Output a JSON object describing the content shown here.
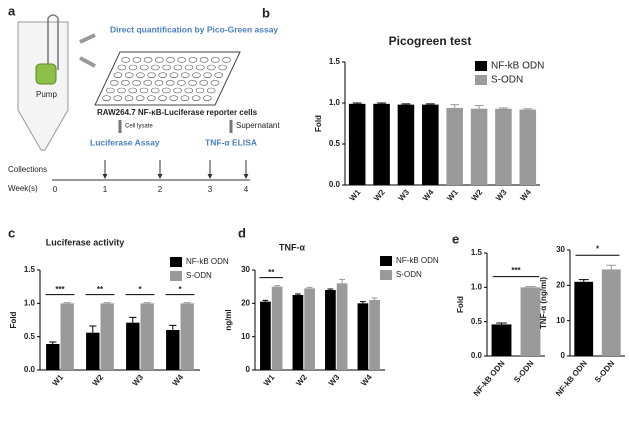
{
  "panel_labels": [
    "a",
    "b",
    "c",
    "d",
    "e"
  ],
  "diagram": {
    "assay": "Direct quantification by Pico-Green assay",
    "pump": "Pump",
    "cells": "RAW264.7 NF-κB-Luciferase reporter cells",
    "left_step": "Cell lysate",
    "right_step": "Supernatant",
    "left_assay": "Luciferase Assay",
    "right_assay": "TNF-α ELISA",
    "collections": "Collections",
    "weeks_label": "Week(s)",
    "weeks": [
      0,
      1,
      2,
      3,
      4
    ]
  },
  "chart_data": [
    {
      "type": "bar",
      "title": "Picogreen test",
      "ylabel": "Fold",
      "categories": [
        "W1",
        "W2",
        "W3",
        "W4",
        "W1",
        "W2",
        "W3",
        "W4"
      ],
      "series": [
        {
          "name": "NF-kB ODN",
          "color": "#000000",
          "values": [
            0.99,
            0.99,
            0.98,
            0.98,
            null,
            null,
            null,
            null
          ],
          "errors": [
            0.01,
            0.01,
            0.01,
            0.01,
            null,
            null,
            null,
            null
          ]
        },
        {
          "name": "S-ODN",
          "color": "#9a9a9a",
          "values": [
            null,
            null,
            null,
            null,
            0.94,
            0.93,
            0.93,
            0.92
          ],
          "errors": [
            null,
            null,
            null,
            null,
            0.04,
            0.04,
            0.01,
            0.01
          ]
        }
      ],
      "ylim": [
        0,
        1.5
      ],
      "yticks": [
        {
          "value": 0,
          "label": "0.0"
        },
        {
          "value": 0.5,
          "label": "0.5"
        },
        {
          "value": 1,
          "label": "1.0"
        },
        {
          "value": 1.5,
          "label": "1.5"
        }
      ]
    },
    {
      "type": "bar",
      "title": "Luciferase activity",
      "ylabel": "Fold",
      "categories": [
        "W1",
        "W2",
        "W3",
        "W4"
      ],
      "series": [
        {
          "name": "NF-kB ODN",
          "color": "#000000",
          "values": [
            0.39,
            0.56,
            0.71,
            0.6
          ],
          "errors": [
            0.03,
            0.1,
            0.08,
            0.07
          ]
        },
        {
          "name": "S-ODN",
          "color": "#9a9a9a",
          "values": [
            1.0,
            1.0,
            1.0,
            1.0
          ],
          "errors": [
            0.01,
            0.01,
            0.01,
            0.01
          ]
        }
      ],
      "significance": [
        "***",
        "**",
        "*",
        "*"
      ],
      "ylim": [
        0,
        1.5
      ],
      "yticks": [
        {
          "value": 0,
          "label": "0.0"
        },
        {
          "value": 0.5,
          "label": "0.5"
        },
        {
          "value": 1,
          "label": "1.0"
        },
        {
          "value": 1.5,
          "label": "1.5"
        }
      ]
    },
    {
      "type": "bar",
      "title": "TNF-α",
      "ylabel": "ng/ml",
      "categories": [
        "W1",
        "W2",
        "W3",
        "W4"
      ],
      "series": [
        {
          "name": "NF-kB ODN",
          "color": "#000000",
          "values": [
            20.5,
            22.5,
            24,
            20
          ],
          "errors": [
            0.4,
            0.3,
            0.3,
            0.5
          ]
        },
        {
          "name": "S-ODN",
          "color": "#9a9a9a",
          "values": [
            25,
            24.5,
            26,
            21
          ],
          "errors": [
            0.3,
            0.3,
            1.2,
            0.6
          ]
        }
      ],
      "significance": [
        "**",
        null,
        null,
        null
      ],
      "ylim": [
        0,
        30
      ],
      "yticks": [
        0,
        10,
        20,
        30
      ]
    },
    {
      "type": "bar",
      "ylabel": "Fold",
      "categories": [
        "NF-kB ODN",
        "S-ODN"
      ],
      "series": [
        {
          "colors": [
            "#000000",
            "#9a9a9a"
          ],
          "values": [
            0.46,
            1.0
          ],
          "errors": [
            0.02,
            0.01
          ]
        }
      ],
      "bracket": "***",
      "ylim": [
        0,
        1.5
      ],
      "yticks": [
        {
          "value": 0,
          "label": "0.0"
        },
        {
          "value": 0.5,
          "label": "0.5"
        },
        {
          "value": 1,
          "label": "1.0"
        },
        {
          "value": 1.5,
          "label": "1.5"
        }
      ]
    },
    {
      "type": "bar",
      "ylabel": "TNF-α (ng/ml)",
      "categories": [
        "NF-kB ODN",
        "S-ODN"
      ],
      "series": [
        {
          "colors": [
            "#000000",
            "#9a9a9a"
          ],
          "values": [
            21,
            24.5
          ],
          "errors": [
            0.6,
            1.2
          ]
        }
      ],
      "bracket": "*",
      "ylim": [
        0,
        30
      ],
      "yticks": [
        0,
        10,
        20,
        30
      ]
    }
  ]
}
